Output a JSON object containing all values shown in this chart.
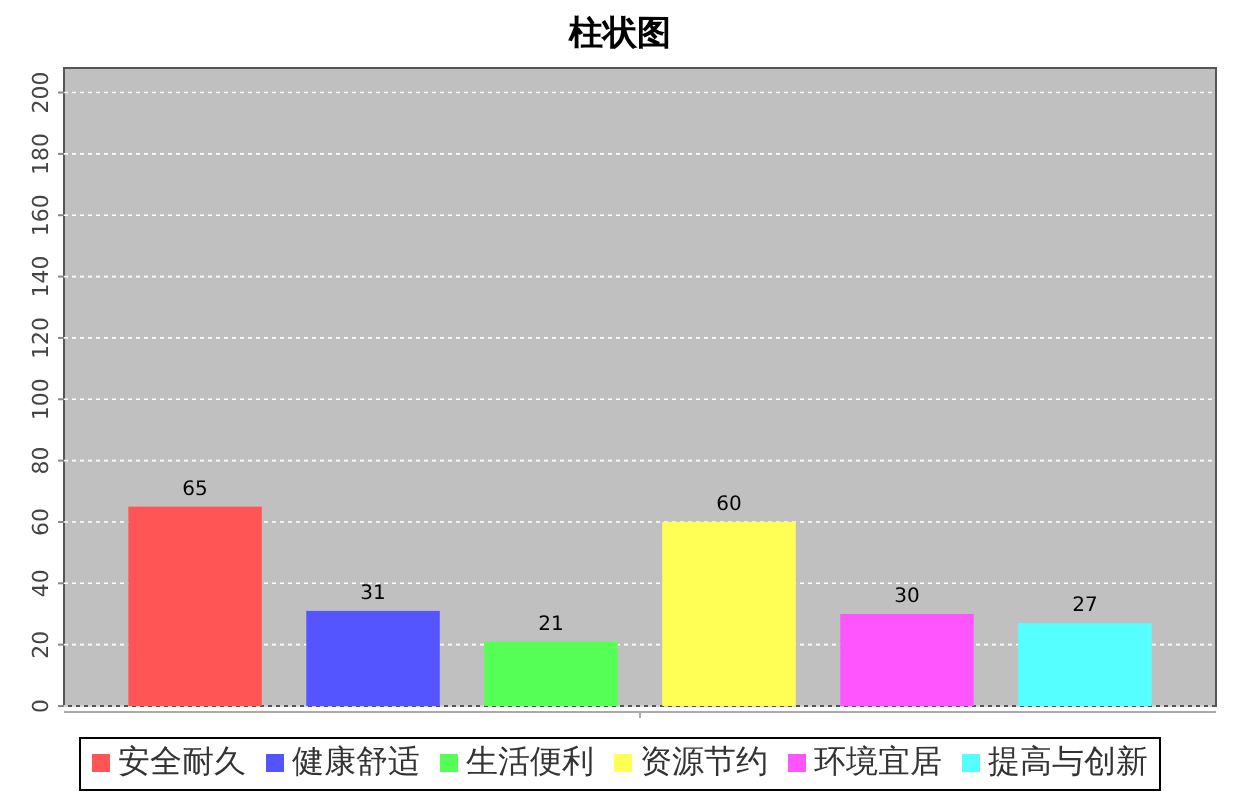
{
  "chart_data": {
    "type": "bar",
    "title": "柱状图",
    "categories": [
      null
    ],
    "series": [
      {
        "name": "安全耐久",
        "color": "#ff5555",
        "values": [
          65
        ]
      },
      {
        "name": "健康舒适",
        "color": "#5555ff",
        "values": [
          31
        ]
      },
      {
        "name": "生活便利",
        "color": "#55ff55",
        "values": [
          21
        ]
      },
      {
        "name": "资源节约",
        "color": "#ffff55",
        "values": [
          60
        ]
      },
      {
        "name": "环境宜居",
        "color": "#ff55ff",
        "values": [
          30
        ]
      },
      {
        "name": "提高与创新",
        "color": "#55ffff",
        "values": [
          27
        ]
      }
    ],
    "ylim": [
      0,
      208
    ],
    "yticks": [
      0,
      20,
      40,
      60,
      80,
      100,
      120,
      140,
      160,
      180,
      200
    ],
    "grid": "y",
    "legend": "bottom",
    "data_labels": true
  }
}
